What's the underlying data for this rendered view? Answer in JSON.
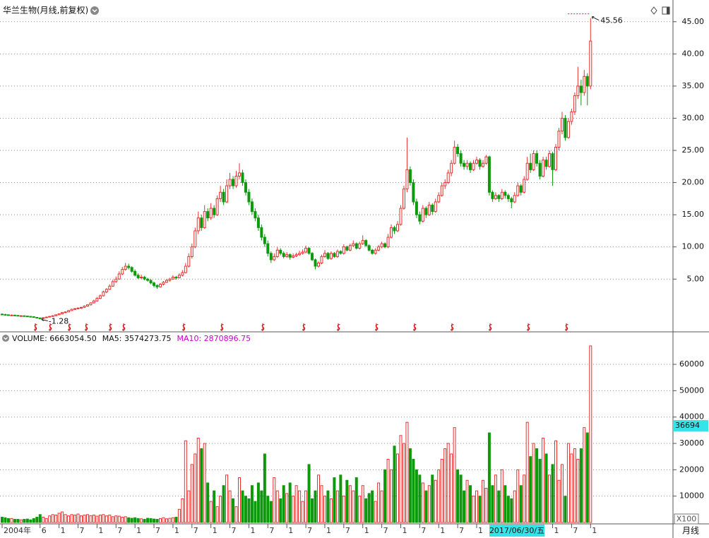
{
  "chart_data": {
    "type": "candlestick",
    "title": "华兰生物(月线,前复权)",
    "categories": [
      "2004年",
      null,
      null,
      null,
      null,
      null,
      null,
      null,
      null,
      null,
      null,
      null,
      "6",
      null,
      null,
      null,
      null,
      null,
      "1",
      null,
      null,
      null,
      null,
      null,
      "7",
      null,
      null,
      null,
      null,
      null,
      "1",
      null,
      null,
      null,
      null,
      null,
      "7",
      null,
      null,
      null,
      null,
      null,
      "1",
      null,
      null,
      null,
      null,
      null,
      "7",
      null,
      null,
      null,
      null,
      null,
      "1",
      null,
      null,
      null,
      null,
      null,
      "7",
      null,
      null,
      null,
      null,
      null,
      "1",
      null,
      null,
      null,
      null,
      null,
      "7",
      null,
      null,
      null,
      null,
      null,
      "1",
      null,
      null,
      null,
      null,
      null,
      "7",
      null,
      null,
      null,
      null,
      null,
      "1",
      null,
      null,
      null,
      null,
      null,
      "7",
      null,
      null,
      null,
      null,
      null,
      "1",
      null,
      null,
      null,
      null,
      null,
      "7",
      null,
      null,
      null,
      null,
      null,
      "1",
      null,
      null,
      null,
      null,
      null,
      "7",
      null,
      null,
      null,
      null,
      null,
      "1",
      null,
      null,
      null,
      null,
      null,
      "7",
      null,
      null,
      null,
      null,
      null,
      "1",
      null,
      null,
      null,
      null,
      null,
      "7",
      null,
      null,
      null,
      null,
      null,
      "1",
      null,
      null,
      null,
      null,
      null,
      null,
      null,
      null,
      null,
      null,
      null,
      null,
      null,
      null,
      null,
      null,
      null,
      null,
      null,
      null,
      null,
      null,
      null,
      "1",
      null,
      null,
      null,
      null,
      null,
      "7",
      null,
      null,
      null,
      null,
      null,
      "1"
    ],
    "candles": [
      [
        -0.45,
        -0.35,
        -0.6,
        -0.5
      ],
      [
        -0.5,
        -0.4,
        -0.6,
        -0.55
      ],
      [
        -0.55,
        -0.5,
        -0.65,
        -0.6
      ],
      [
        -0.6,
        -0.5,
        -0.7,
        -0.6
      ],
      [
        -0.6,
        -0.55,
        -0.7,
        -0.65
      ],
      [
        -0.65,
        -0.6,
        -0.75,
        -0.7
      ],
      [
        -0.7,
        -0.6,
        -0.8,
        -0.7
      ],
      [
        -0.7,
        -0.65,
        -0.8,
        -0.75
      ],
      [
        -0.75,
        -0.7,
        -0.85,
        -0.8
      ],
      [
        -0.8,
        -0.75,
        -0.9,
        -0.85
      ],
      [
        -0.85,
        -0.8,
        -1.0,
        -0.95
      ],
      [
        -0.95,
        -0.9,
        -1.1,
        -1.05
      ],
      [
        -1.05,
        -0.95,
        -1.28,
        -1.1
      ],
      [
        -1.1,
        -0.95,
        -1.15,
        -1.0
      ],
      [
        -1.0,
        -0.85,
        -1.05,
        -0.9
      ],
      [
        -0.9,
        -0.75,
        -0.95,
        -0.8
      ],
      [
        -0.8,
        -0.65,
        -0.85,
        -0.7
      ],
      [
        -0.7,
        -0.5,
        -0.75,
        -0.55
      ],
      [
        -0.55,
        -0.35,
        -0.6,
        -0.4
      ],
      [
        -0.4,
        -0.15,
        -0.45,
        -0.2
      ],
      [
        -0.2,
        -0.05,
        -0.3,
        -0.1
      ],
      [
        -0.1,
        0.2,
        -0.15,
        0.1
      ],
      [
        0.1,
        0.4,
        0.05,
        0.3
      ],
      [
        0.3,
        0.5,
        0.2,
        0.4
      ],
      [
        0.4,
        0.6,
        0.3,
        0.5
      ],
      [
        0.5,
        0.7,
        0.4,
        0.6
      ],
      [
        0.6,
        0.9,
        0.5,
        0.8
      ],
      [
        0.8,
        1.1,
        0.7,
        1.0
      ],
      [
        1.0,
        1.4,
        0.9,
        1.3
      ],
      [
        1.3,
        1.8,
        1.2,
        1.6
      ],
      [
        1.6,
        2.2,
        1.5,
        2.0
      ],
      [
        2.0,
        2.6,
        1.9,
        2.4
      ],
      [
        2.4,
        3.2,
        2.3,
        3.0
      ],
      [
        3.0,
        3.6,
        2.8,
        3.4
      ],
      [
        3.4,
        4.2,
        3.3,
        3.9
      ],
      [
        3.9,
        4.9,
        3.8,
        4.6
      ],
      [
        4.6,
        5.4,
        4.4,
        5.0
      ],
      [
        5.0,
        6.2,
        4.9,
        5.8
      ],
      [
        5.8,
        6.9,
        5.6,
        6.5
      ],
      [
        6.5,
        7.5,
        6.3,
        7.0
      ],
      [
        7.0,
        7.4,
        6.5,
        6.8
      ],
      [
        6.8,
        7.0,
        6.0,
        6.2
      ],
      [
        6.2,
        6.5,
        5.4,
        5.6
      ],
      [
        5.6,
        5.9,
        5.0,
        5.2
      ],
      [
        5.2,
        5.7,
        5.0,
        5.3
      ],
      [
        5.3,
        5.5,
        4.8,
        5.0
      ],
      [
        5.0,
        5.2,
        4.6,
        4.8
      ],
      [
        4.8,
        5.0,
        4.2,
        4.4
      ],
      [
        4.4,
        4.6,
        3.7,
        4.0
      ],
      [
        4.0,
        4.2,
        3.5,
        3.8
      ],
      [
        3.8,
        4.4,
        3.7,
        4.2
      ],
      [
        4.2,
        4.7,
        4.0,
        4.5
      ],
      [
        4.5,
        5.0,
        4.4,
        4.8
      ],
      [
        4.8,
        5.2,
        4.6,
        5.0
      ],
      [
        5.0,
        5.6,
        4.9,
        5.3
      ],
      [
        5.3,
        5.5,
        4.9,
        5.2
      ],
      [
        5.2,
        5.9,
        5.1,
        5.6
      ],
      [
        5.6,
        6.4,
        5.4,
        6.0
      ],
      [
        6.0,
        7.5,
        5.9,
        7.0
      ],
      [
        7.0,
        9.0,
        6.8,
        8.5
      ],
      [
        8.5,
        10.5,
        8.2,
        10.0
      ],
      [
        10.0,
        13.0,
        9.8,
        12.5
      ],
      [
        12.5,
        15.5,
        12.0,
        14.5
      ],
      [
        14.5,
        15.0,
        12.5,
        13.0
      ],
      [
        13.0,
        16.5,
        12.8,
        15.5
      ],
      [
        15.5,
        16.0,
        14.0,
        14.5
      ],
      [
        14.5,
        16.8,
        14.2,
        16.0
      ],
      [
        16.0,
        16.5,
        14.5,
        15.0
      ],
      [
        15.0,
        18.0,
        14.8,
        17.5
      ],
      [
        17.5,
        19.5,
        17.0,
        18.5
      ],
      [
        18.5,
        19.0,
        16.5,
        17.0
      ],
      [
        17.0,
        20.5,
        16.8,
        19.5
      ],
      [
        19.5,
        21.5,
        19.0,
        20.5
      ],
      [
        20.5,
        21.0,
        19.0,
        19.5
      ],
      [
        19.5,
        21.8,
        19.2,
        21.0
      ],
      [
        21.0,
        23.0,
        20.5,
        21.5
      ],
      [
        21.5,
        22.0,
        19.5,
        20.0
      ],
      [
        20.0,
        20.5,
        18.0,
        18.5
      ],
      [
        18.5,
        19.0,
        16.5,
        17.0
      ],
      [
        17.0,
        17.5,
        15.0,
        15.5
      ],
      [
        15.5,
        16.0,
        14.0,
        14.5
      ],
      [
        14.5,
        15.0,
        12.5,
        13.0
      ],
      [
        13.0,
        13.5,
        11.0,
        11.5
      ],
      [
        11.5,
        12.0,
        10.0,
        10.5
      ],
      [
        10.5,
        11.0,
        8.5,
        9.0
      ],
      [
        9.0,
        9.3,
        7.5,
        8.0
      ],
      [
        8.0,
        9.0,
        7.8,
        8.5
      ],
      [
        8.5,
        10.0,
        8.3,
        9.5
      ],
      [
        9.5,
        9.8,
        8.7,
        9.0
      ],
      [
        9.0,
        9.3,
        8.2,
        8.5
      ],
      [
        8.5,
        9.2,
        8.3,
        8.8
      ],
      [
        8.8,
        9.0,
        8.0,
        8.4
      ],
      [
        8.4,
        9.0,
        8.2,
        8.6
      ],
      [
        8.6,
        9.1,
        8.4,
        8.8
      ],
      [
        8.8,
        9.4,
        8.6,
        9.0
      ],
      [
        9.0,
        9.6,
        8.8,
        9.2
      ],
      [
        9.2,
        10.2,
        9.0,
        9.8
      ],
      [
        9.8,
        10.0,
        8.8,
        9.0
      ],
      [
        9.0,
        9.2,
        7.8,
        8.0
      ],
      [
        8.0,
        8.2,
        6.5,
        7.0
      ],
      [
        7.0,
        7.8,
        6.8,
        7.5
      ],
      [
        7.5,
        8.8,
        7.3,
        8.5
      ],
      [
        8.5,
        9.5,
        8.3,
        9.0
      ],
      [
        9.0,
        9.2,
        8.0,
        8.2
      ],
      [
        8.2,
        9.3,
        8.0,
        9.0
      ],
      [
        9.0,
        9.2,
        8.3,
        8.5
      ],
      [
        8.5,
        9.6,
        8.3,
        9.3
      ],
      [
        9.3,
        9.5,
        8.8,
        9.0
      ],
      [
        9.0,
        10.4,
        8.8,
        10.0
      ],
      [
        10.0,
        10.2,
        9.3,
        9.5
      ],
      [
        9.5,
        10.5,
        9.3,
        10.2
      ],
      [
        10.2,
        11.0,
        10.0,
        10.5
      ],
      [
        10.5,
        10.7,
        9.6,
        9.8
      ],
      [
        9.8,
        10.8,
        9.6,
        10.5
      ],
      [
        10.5,
        11.8,
        10.3,
        11.0
      ],
      [
        11.0,
        11.2,
        10.0,
        10.2
      ],
      [
        10.2,
        10.4,
        9.3,
        9.5
      ],
      [
        9.5,
        9.7,
        8.8,
        9.0
      ],
      [
        9.0,
        9.8,
        8.8,
        9.5
      ],
      [
        9.5,
        10.3,
        9.3,
        10.0
      ],
      [
        10.0,
        10.8,
        9.8,
        10.5
      ],
      [
        10.5,
        10.7,
        9.8,
        10.0
      ],
      [
        10.0,
        12.0,
        9.8,
        11.5
      ],
      [
        11.5,
        13.5,
        11.3,
        13.0
      ],
      [
        13.0,
        13.3,
        12.0,
        12.5
      ],
      [
        12.5,
        14.0,
        12.3,
        13.5
      ],
      [
        13.5,
        16.5,
        13.3,
        16.0
      ],
      [
        16.0,
        19.5,
        15.8,
        19.0
      ],
      [
        19.0,
        27.0,
        18.5,
        22.0
      ],
      [
        22.0,
        22.5,
        19.5,
        20.0
      ],
      [
        20.0,
        20.5,
        16.5,
        17.0
      ],
      [
        17.0,
        17.5,
        14.5,
        15.0
      ],
      [
        15.0,
        15.5,
        13.5,
        14.0
      ],
      [
        14.0,
        16.5,
        13.8,
        16.0
      ],
      [
        16.0,
        16.3,
        14.5,
        15.0
      ],
      [
        15.0,
        17.0,
        14.8,
        16.5
      ],
      [
        16.5,
        16.8,
        15.0,
        15.5
      ],
      [
        15.5,
        17.5,
        15.3,
        17.0
      ],
      [
        17.0,
        18.5,
        16.8,
        18.0
      ],
      [
        18.0,
        20.0,
        17.8,
        19.5
      ],
      [
        19.5,
        20.5,
        19.0,
        20.0
      ],
      [
        20.0,
        22.0,
        19.8,
        21.5
      ],
      [
        21.5,
        23.5,
        21.0,
        23.0
      ],
      [
        23.0,
        26.5,
        22.8,
        25.5
      ],
      [
        25.5,
        26.0,
        24.0,
        24.5
      ],
      [
        24.5,
        25.0,
        22.5,
        23.0
      ],
      [
        23.0,
        23.5,
        22.0,
        22.5
      ],
      [
        22.5,
        23.5,
        22.0,
        23.0
      ],
      [
        23.0,
        23.3,
        21.5,
        22.0
      ],
      [
        22.0,
        23.5,
        21.8,
        23.0
      ],
      [
        23.0,
        24.0,
        22.8,
        23.5
      ],
      [
        23.5,
        23.8,
        22.0,
        22.5
      ],
      [
        22.5,
        23.5,
        22.3,
        23.0
      ],
      [
        23.0,
        24.3,
        22.8,
        24.0
      ],
      [
        24.0,
        24.2,
        18.0,
        18.5
      ],
      [
        18.5,
        18.8,
        17.0,
        17.5
      ],
      [
        17.5,
        18.5,
        17.3,
        18.0
      ],
      [
        18.0,
        18.2,
        17.0,
        17.5
      ],
      [
        17.5,
        19.0,
        17.3,
        18.5
      ],
      [
        18.5,
        18.8,
        17.5,
        18.0
      ],
      [
        18.0,
        18.3,
        17.0,
        17.5
      ],
      [
        17.5,
        17.8,
        16.0,
        17.0
      ],
      [
        17.0,
        18.5,
        16.8,
        18.0
      ],
      [
        18.0,
        20.0,
        17.8,
        19.5
      ],
      [
        19.5,
        19.8,
        18.0,
        18.5
      ],
      [
        18.5,
        21.0,
        18.3,
        20.5
      ],
      [
        20.5,
        24.0,
        20.3,
        23.0
      ],
      [
        23.0,
        24.5,
        21.5,
        22.0
      ],
      [
        22.0,
        25.0,
        21.8,
        24.5
      ],
      [
        24.5,
        25.0,
        22.5,
        23.0
      ],
      [
        23.0,
        23.5,
        20.5,
        21.0
      ],
      [
        21.0,
        24.0,
        20.8,
        23.5
      ],
      [
        23.5,
        24.0,
        22.0,
        22.5
      ],
      [
        22.5,
        25.0,
        22.3,
        24.5
      ],
      [
        24.5,
        24.8,
        19.5,
        22.0
      ],
      [
        22.0,
        26.0,
        21.8,
        25.5
      ],
      [
        25.5,
        28.5,
        25.0,
        28.0
      ],
      [
        28.0,
        31.0,
        27.5,
        30.0
      ],
      [
        30.0,
        30.5,
        26.5,
        27.0
      ],
      [
        27.0,
        30.0,
        26.8,
        29.5
      ],
      [
        29.5,
        31.5,
        29.0,
        31.0
      ],
      [
        31.0,
        34.0,
        30.5,
        33.5
      ],
      [
        33.5,
        38.0,
        33.0,
        35.0
      ],
      [
        35.0,
        36.0,
        32.0,
        34.0
      ],
      [
        34.0,
        37.5,
        33.5,
        36.5
      ],
      [
        36.5,
        37.0,
        32.0,
        35.0
      ],
      [
        35.0,
        45.56,
        34.5,
        42.0
      ]
    ],
    "up_color": "#e8312f",
    "down_color": "#0c9a0c",
    "ylim": [
      -3.2,
      47.5
    ],
    "yticks": [
      {
        "value": 5,
        "label": "5.00"
      },
      {
        "value": 10,
        "label": "10.00"
      },
      {
        "value": 15,
        "label": "15.00"
      },
      {
        "value": 20,
        "label": "20.00"
      },
      {
        "value": 25,
        "label": "25.00"
      },
      {
        "value": 30,
        "label": "30.00"
      },
      {
        "value": 35,
        "label": "35.00"
      },
      {
        "value": 40,
        "label": "40.00"
      },
      {
        "value": 45,
        "label": "45.00"
      }
    ],
    "grid": true,
    "volume": {
      "header": [
        {
          "text": "VOLUME: 6663054.50",
          "color": "#111111"
        },
        {
          "text": "MA5: 3574273.75",
          "color": "#111111"
        },
        {
          "text": "MA10: 2870896.75",
          "color": "#cc00cc"
        }
      ],
      "values": [
        2000,
        1800,
        1500,
        1500,
        1200,
        1200,
        1000,
        1200,
        1300,
        1000,
        1500,
        2000,
        3000,
        2000,
        1500,
        2500,
        3000,
        2800,
        3500,
        4000,
        3000,
        2500,
        3000,
        2800,
        3200,
        2500,
        2800,
        3000,
        2600,
        2800,
        2400,
        2800,
        3000,
        2500,
        2800,
        2200,
        2500,
        2400,
        2000,
        2200,
        1800,
        1600,
        1800,
        1500,
        1400,
        1200,
        1600,
        1500,
        1300,
        1200,
        1500,
        1800,
        1400,
        1600,
        1800,
        2000,
        5000,
        9000,
        31000,
        12000,
        22000,
        26000,
        32000,
        28000,
        30000,
        15000,
        8000,
        12000,
        6000,
        10000,
        14000,
        18000,
        12000,
        9000,
        6000,
        17000,
        12000,
        10000,
        9000,
        14000,
        8000,
        15000,
        12000,
        26000,
        10000,
        8000,
        17000,
        12000,
        9000,
        14000,
        11000,
        15000,
        10000,
        14000,
        12000,
        8000,
        12000,
        22000,
        9000,
        12000,
        18000,
        14000,
        10000,
        12000,
        9000,
        17000,
        12000,
        18000,
        10000,
        16000,
        14000,
        12000,
        17000,
        10000,
        14000,
        9000,
        11000,
        12000,
        8000,
        15000,
        12000,
        20000,
        24000,
        20000,
        29000,
        26000,
        33000,
        30000,
        38000,
        28000,
        24000,
        20000,
        18000,
        15000,
        12000,
        14000,
        18000,
        16000,
        20000,
        24000,
        28000,
        30000,
        26000,
        36000,
        20000,
        18000,
        12000,
        16000,
        14000,
        10000,
        12000,
        10000,
        16000,
        13000,
        34000,
        14000,
        18000,
        12000,
        20000,
        14000,
        10000,
        9000,
        12000,
        20000,
        14000,
        18000,
        38000,
        25000,
        30000,
        28000,
        24000,
        32000,
        26000,
        18000,
        22000,
        31000,
        16000,
        22000,
        10000,
        30000,
        26000,
        28000,
        24000,
        28000,
        36000,
        34000,
        67000
      ],
      "ylim": [
        0,
        71800
      ],
      "yticks": [
        10000,
        20000,
        30000,
        40000,
        50000,
        60000
      ],
      "marker": 36694,
      "unit_label": "X100"
    },
    "cursor_label": "2017/06/30/五",
    "period_label": "月线"
  }
}
